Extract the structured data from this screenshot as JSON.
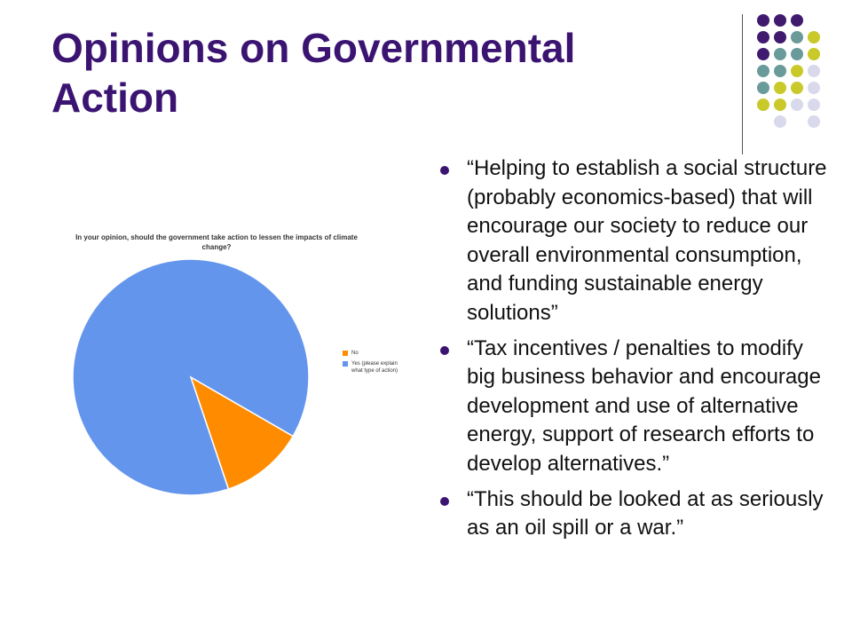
{
  "slide": {
    "title": "Opinions on Governmental Action",
    "decor_colors": {
      "purple": "#3f1a6e",
      "teal": "#6a9a9a",
      "olive": "#c9c92a",
      "lavender": "#d9d9ec"
    }
  },
  "chart_data": {
    "type": "pie",
    "title": "In your opinion, should the government take action to lessen the impacts of climate change?",
    "slices": [
      {
        "label": "No",
        "value": 11.5,
        "color": "#ff8c00"
      },
      {
        "label": "Yes (please explain what type of action)",
        "value": 88.5,
        "color": "#6495ed"
      }
    ],
    "legend_position": "right"
  },
  "quotes": [
    {
      "text": "“Helping to establish a social structure (probably economics-based) that will encourage our society to reduce our overall environmental consumption, and funding sustainable energy solutions”"
    },
    {
      "text": "“Tax incentives / penalties to modify big business behavior and encourage development and use of alternative energy, support of research efforts to develop alternatives.”"
    },
    {
      "text": "“This should be looked at as seriously as an oil spill or a war.”"
    }
  ]
}
